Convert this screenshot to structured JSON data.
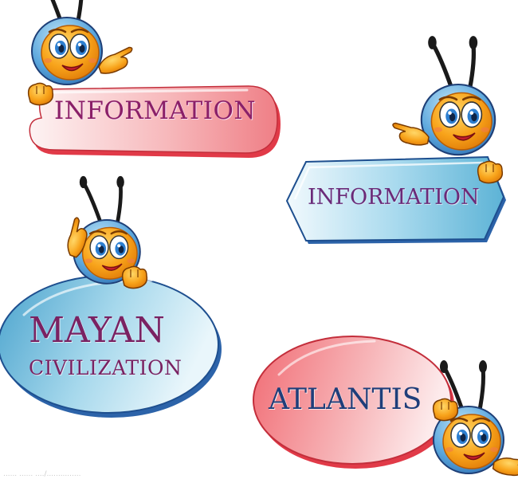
{
  "labels": {
    "top_left": "INFORMATION",
    "right": "INFORMATION",
    "left_oval_line1": "MAYAN",
    "left_oval_line2": "CIVILIZATION",
    "bottom_right": "ATLANTIS"
  },
  "watermark": "...... ...... ..../...............",
  "colors": {
    "pink_fill_light": "#fbe9ea",
    "pink_fill_dark": "#ef7f86",
    "pink_rim": "#e13a48",
    "blue_fill_light": "#e9f6fb",
    "blue_fill_dark": "#5db3d6",
    "blue_rim": "#2c63a9",
    "bee_body": "#f8a31a",
    "bee_helmet": "#3b82c4",
    "text_purple": "#8a1f68",
    "text_navy": "#1f3e7a"
  },
  "icons": [
    "cartoon-bee-icon"
  ]
}
